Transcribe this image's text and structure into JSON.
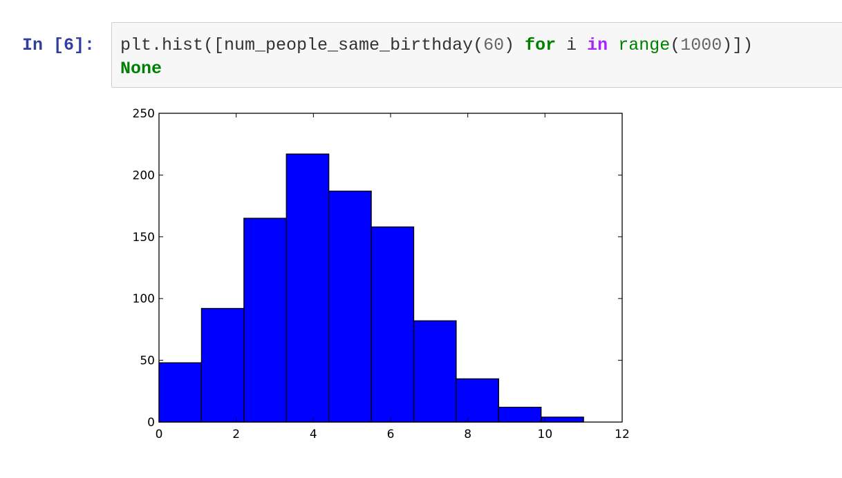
{
  "cell": {
    "prompt": "In [6]:",
    "code_line1": [
      {
        "text": "plt.hist([num_people_same_birthday(",
        "type": "plain"
      },
      {
        "text": "60",
        "type": "num"
      },
      {
        "text": ") ",
        "type": "plain"
      },
      {
        "text": "for",
        "type": "kw"
      },
      {
        "text": " i ",
        "type": "plain"
      },
      {
        "text": "in",
        "type": "op"
      },
      {
        "text": " ",
        "type": "plain"
      },
      {
        "text": "range",
        "type": "builtin"
      },
      {
        "text": "(",
        "type": "plain"
      },
      {
        "text": "1000",
        "type": "num"
      },
      {
        "text": ")])",
        "type": "plain"
      }
    ],
    "code_line2": "None"
  },
  "colors": {
    "bar_fill": "#0000ff",
    "bar_edge": "#000000",
    "prompt": "#303f9f",
    "keyword": "#008000",
    "operator": "#aa22ff",
    "number": "#666666"
  },
  "chart_data": {
    "type": "bar",
    "subtype": "histogram",
    "bin_edges": [
      0,
      1.1,
      2.2,
      3.3,
      4.4,
      5.5,
      6.6,
      7.7,
      8.8,
      9.9,
      11
    ],
    "values": [
      48,
      92,
      165,
      217,
      187,
      158,
      82,
      35,
      12,
      4
    ],
    "xlim": [
      0,
      12
    ],
    "ylim": [
      0,
      250
    ],
    "xticks": [
      "0",
      "2",
      "4",
      "6",
      "8",
      "10",
      "12"
    ],
    "yticks": [
      "0",
      "50",
      "100",
      "150",
      "200",
      "250"
    ],
    "grid": false,
    "title": "",
    "xlabel": "",
    "ylabel": ""
  }
}
